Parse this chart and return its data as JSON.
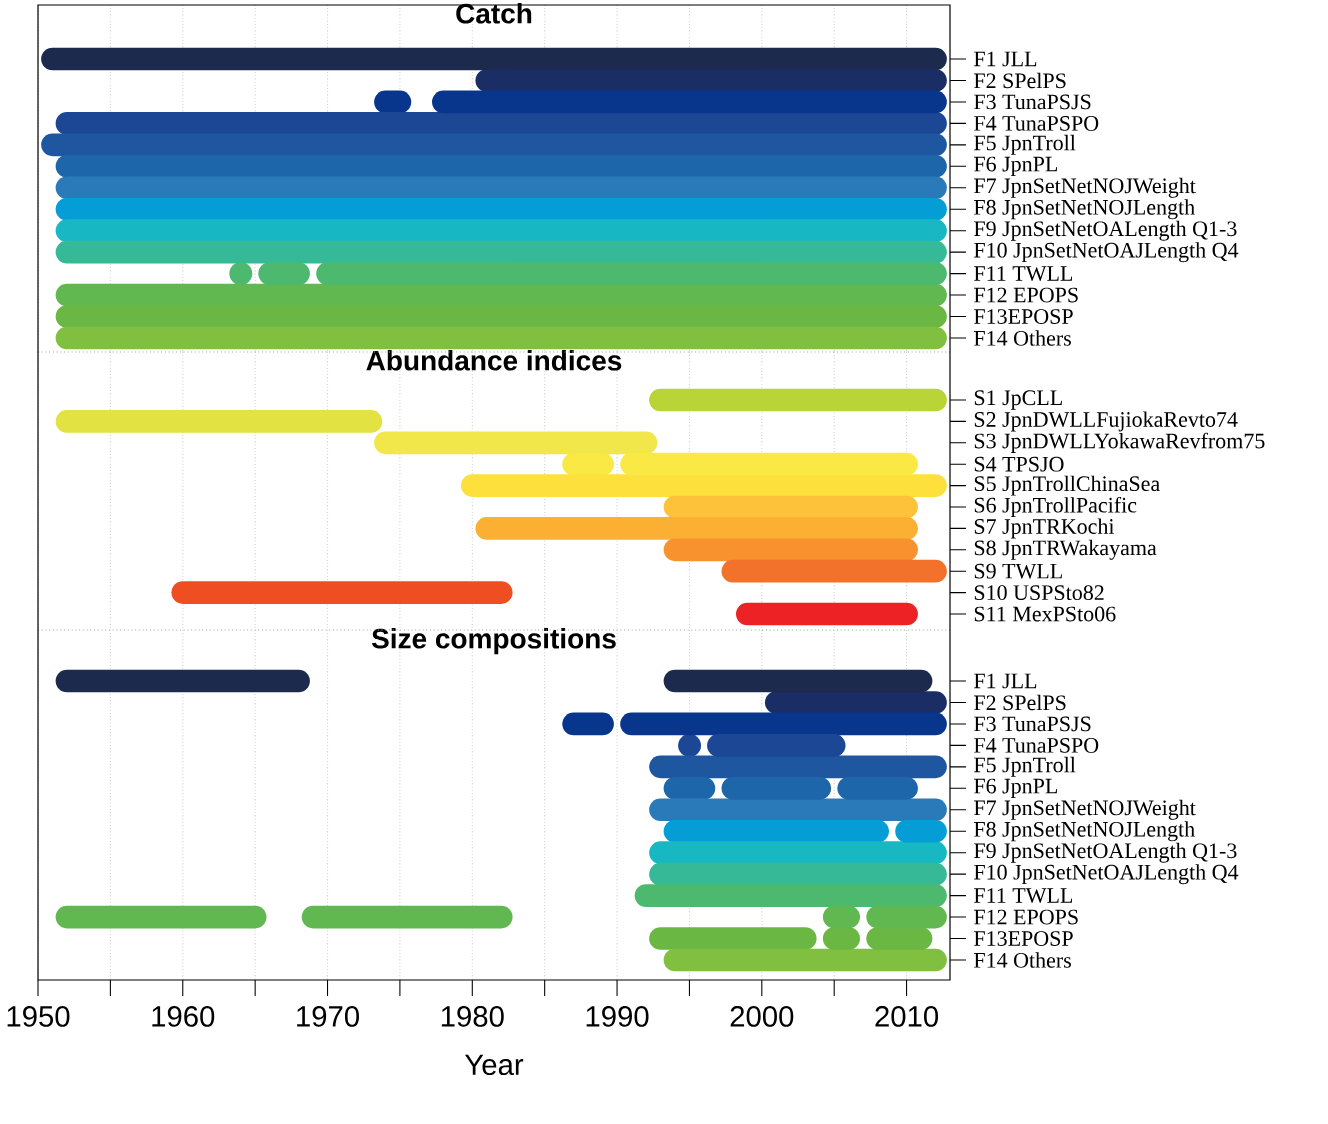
{
  "chart_data": [
    {
      "type": "bar",
      "orientation": "horizontal",
      "title": "Catch",
      "grid": "x",
      "tick_labels": "y",
      "categories": [
        "F1 JLL",
        "F2 SPelPS",
        "F3 TunaPSJS",
        "F4 TunaPSPO",
        "F5 JpnTroll",
        "F6 JpnPL",
        "F7 JpnSetNetNOJWeight",
        "F8 JpnSetNetNOJLength",
        "F9 JpnSetNetOALength Q1-3",
        "F10 JpnSetNetOAJLength Q4",
        "F11 TWLL",
        "F12 EPOPS",
        "F13EPOSP",
        "F14 Others"
      ],
      "xlim": [
        1950,
        2013
      ],
      "xticks": [
        1950,
        {
          "value": 1955,
          "label": null
        },
        1960,
        {
          "value": 1965,
          "label": null
        },
        1970,
        {
          "value": 1975,
          "label": null
        },
        1980,
        {
          "value": 1985,
          "label": null
        },
        1990,
        {
          "value": 1995,
          "label": null
        },
        2000,
        {
          "value": 2005,
          "label": null
        },
        2010
      ],
      "series": [
        {
          "colors": [
            "#1b2a4d",
            "#1a2d65",
            "#08368c",
            "#1b4795",
            "#1e56a0",
            "#1d66aa",
            "#2a7aba",
            "#049dd6",
            "#17b8c4",
            "#36b996",
            "#4db96f",
            "#61b851",
            "#6ab843",
            "#80bf40"
          ],
          "base": [
            1951,
            1981,
            1974,
            1952,
            1951,
            1952,
            1952,
            1952,
            1952,
            1952,
            1964,
            1952,
            1952,
            1952
          ],
          "values": [
            61,
            31,
            1,
            60,
            61,
            60,
            60,
            60,
            60,
            60,
            0,
            60,
            60,
            60
          ]
        },
        {
          "colors": [
            null,
            null,
            "#08368c",
            null,
            null,
            null,
            null,
            null,
            null,
            null,
            "#4db96f",
            null,
            null,
            null
          ],
          "base": [
            null,
            null,
            1978,
            null,
            null,
            null,
            null,
            null,
            null,
            null,
            1966,
            null,
            null,
            null
          ],
          "values": [
            null,
            null,
            34,
            null,
            null,
            null,
            null,
            null,
            null,
            null,
            2,
            null,
            null,
            null
          ]
        },
        {
          "color": "#4db96f",
          "base": [
            null,
            null,
            null,
            null,
            null,
            null,
            null,
            null,
            null,
            null,
            1970,
            null,
            null,
            null
          ],
          "values": [
            null,
            null,
            null,
            null,
            null,
            null,
            null,
            null,
            null,
            null,
            42,
            null,
            null,
            null
          ]
        }
      ]
    },
    {
      "type": "bar",
      "orientation": "horizontal",
      "title": "Abundance indices",
      "grid": "x",
      "tick_labels": "y",
      "categories": [
        "S1 JpCLL",
        "S2 JpnDWLLFujiokaRevto74",
        "S3 JpnDWLLYokawaRevfrom75",
        "S4 TPSJO",
        "S5 JpnTrollChinaSea",
        "S6 JpnTrollPacific",
        "S7 JpnTRKochi",
        "S8 JpnTRWakayama",
        "S9 TWLL",
        "S10 USPSto82",
        "S11 MexPSto06"
      ],
      "xlim": [
        1950,
        2013
      ],
      "xticks": [
        1950,
        {
          "value": 1955,
          "label": null
        },
        1960,
        {
          "value": 1965,
          "label": null
        },
        1970,
        {
          "value": 1975,
          "label": null
        },
        1980,
        {
          "value": 1985,
          "label": null
        },
        1990,
        {
          "value": 1995,
          "label": null
        },
        2000,
        {
          "value": 2005,
          "label": null
        },
        2010
      ],
      "series": [
        {
          "colors": [
            "#b9d437",
            "#e2e242",
            "#f1e74a",
            "#fae845",
            "#fde03c",
            "#fdc23a",
            "#fbb034",
            "#f7922e",
            "#f2722b",
            "#ef4e22",
            "#ed2224"
          ],
          "base": [
            1993,
            1952,
            1974,
            1987,
            1980,
            1994,
            1981,
            1994,
            1998,
            1960,
            1999
          ],
          "values": [
            19,
            21,
            18,
            2,
            32,
            16,
            29,
            16,
            14,
            22,
            11
          ]
        },
        {
          "color": "#fae845",
          "base": [
            null,
            null,
            null,
            1991,
            null,
            null,
            null,
            null,
            null,
            null,
            null
          ],
          "values": [
            null,
            null,
            null,
            19,
            null,
            null,
            null,
            null,
            null,
            null,
            null
          ]
        }
      ]
    },
    {
      "type": "bar",
      "orientation": "horizontal",
      "title": "Size compositions",
      "grid": "x",
      "xlabel": "Year",
      "categories": [
        "F1 JLL",
        "F2 SPelPS",
        "F3 TunaPSJS",
        "F4 TunaPSPO",
        "F5 JpnTroll",
        "F6 JpnPL",
        "F7 JpnSetNetNOJWeight",
        "F8 JpnSetNetNOJLength",
        "F9 JpnSetNetOALength Q1-3",
        "F10 JpnSetNetOAJLength Q4",
        "F11 TWLL",
        "F12 EPOPS",
        "F13EPOSP",
        "F14 Others"
      ],
      "xlim": [
        1950,
        2013
      ],
      "xticks": [
        1950,
        {
          "value": 1955,
          "label": null
        },
        1960,
        {
          "value": 1965,
          "label": null
        },
        1970,
        {
          "value": 1975,
          "label": null
        },
        1980,
        {
          "value": 1985,
          "label": null
        },
        1990,
        {
          "value": 1995,
          "label": null
        },
        2000,
        {
          "value": 2005,
          "label": null
        },
        2010
      ],
      "series": [
        {
          "colors": [
            "#1b2a4d",
            "#1a2d65",
            "#08368c",
            "#1b4795",
            "#1e56a0",
            "#1d66aa",
            "#2a7aba",
            "#049dd6",
            "#17b8c4",
            "#36b996",
            "#4db96f",
            "#61b851",
            "#6ab843",
            "#80bf40"
          ],
          "base": [
            1952,
            2001,
            1987,
            1995,
            1993,
            1994,
            1993,
            1994,
            1993,
            1993,
            1992,
            1952,
            1993,
            1994
          ],
          "values": [
            16,
            11,
            2,
            0,
            19,
            2,
            19,
            14,
            19,
            19,
            20,
            13,
            10,
            18
          ]
        },
        {
          "colors": [
            "#1b2a4d",
            null,
            "#08368c",
            "#1b4795",
            null,
            "#1d66aa",
            null,
            "#049dd6",
            null,
            null,
            null,
            "#61b851",
            "#6ab843",
            null
          ],
          "base": [
            1994,
            null,
            1991,
            1997,
            null,
            1998,
            null,
            2010,
            null,
            null,
            null,
            1969,
            2005,
            null
          ],
          "values": [
            17,
            null,
            21,
            8,
            null,
            6,
            null,
            2,
            null,
            null,
            null,
            13,
            1,
            null
          ]
        },
        {
          "colors": [
            null,
            null,
            null,
            null,
            null,
            "#1d66aa",
            null,
            null,
            null,
            null,
            null,
            "#61b851",
            "#6ab843",
            null
          ],
          "base": [
            null,
            null,
            null,
            null,
            null,
            2006,
            null,
            null,
            null,
            null,
            null,
            2005,
            2008,
            null
          ],
          "values": [
            null,
            null,
            null,
            null,
            null,
            4,
            null,
            null,
            null,
            null,
            null,
            1,
            3,
            null
          ]
        },
        {
          "color": "#61b851",
          "base": [
            null,
            null,
            null,
            null,
            null,
            null,
            null,
            null,
            null,
            null,
            null,
            2008,
            null,
            null
          ],
          "values": [
            null,
            null,
            null,
            null,
            null,
            null,
            null,
            null,
            null,
            null,
            null,
            4,
            null,
            null
          ]
        }
      ]
    }
  ]
}
